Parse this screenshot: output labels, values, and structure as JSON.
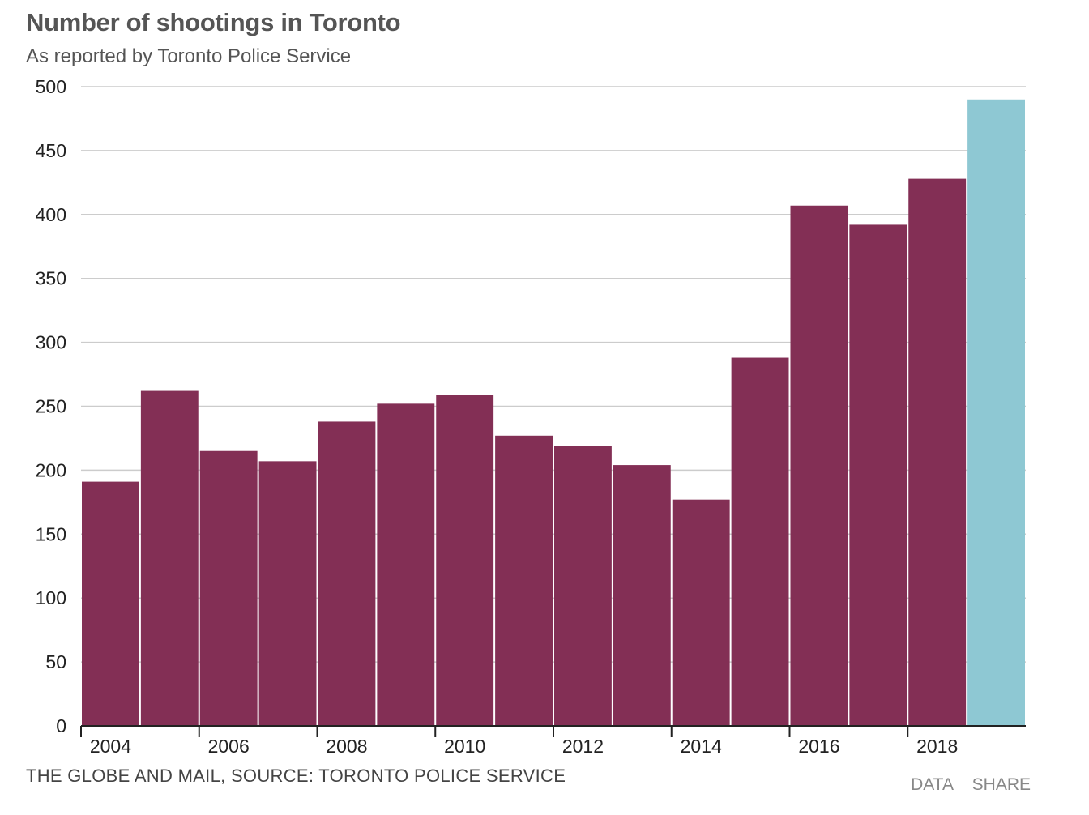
{
  "header": {
    "title": "Number of shootings in Toronto",
    "subtitle": "As reported by Toronto Police Service"
  },
  "footer": {
    "source": "THE GLOBE AND MAIL, SOURCE: TORONTO POLICE SERVICE",
    "data_label": "DATA",
    "share_label": "SHARE"
  },
  "chart_data": {
    "type": "bar",
    "title": "Number of shootings in Toronto",
    "subtitle": "As reported by Toronto Police Service",
    "categories": [
      "2004",
      "2005",
      "2006",
      "2007",
      "2008",
      "2009",
      "2010",
      "2011",
      "2012",
      "2013",
      "2014",
      "2015",
      "2016",
      "2017",
      "2018",
      "2019"
    ],
    "values": [
      191,
      262,
      215,
      207,
      238,
      252,
      259,
      227,
      219,
      204,
      177,
      288,
      407,
      392,
      428,
      490
    ],
    "x_tick_labels": [
      "2004",
      "2006",
      "2008",
      "2010",
      "2012",
      "2014",
      "2016",
      "2018"
    ],
    "y_ticks": [
      0,
      50,
      100,
      150,
      200,
      250,
      300,
      350,
      400,
      450,
      500
    ],
    "ylim": [
      0,
      500
    ],
    "grid": true,
    "colors": {
      "bar": "#832f55",
      "highlight_bar": "#8ec8d3",
      "grid": "#cccccc",
      "axis": "#222222"
    },
    "highlight_category": "2019"
  }
}
